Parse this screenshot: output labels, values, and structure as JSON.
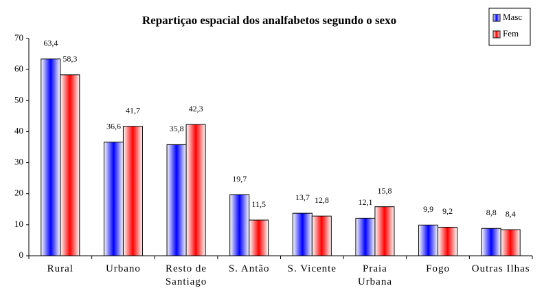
{
  "chart_data": {
    "type": "bar",
    "title": "Repartiçao espacial dos analfabetos segundo o sexo",
    "categories": [
      "Rural",
      "Urbano",
      "Resto de Santiago",
      "S. Antão",
      "S. Vicente",
      "Praia Urbana",
      "Fogo",
      "Outras Ilhas"
    ],
    "series": [
      {
        "name": "Masc",
        "color": "#0000ff",
        "values": [
          63.4,
          36.6,
          35.8,
          19.7,
          13.7,
          12.1,
          9.9,
          8.8
        ],
        "value_labels": [
          "63,4",
          "36,6",
          "35,8",
          "19,7",
          "13,7",
          "12,1",
          "9,9",
          "8,8"
        ]
      },
      {
        "name": "Fem",
        "color": "#ff0000",
        "values": [
          58.3,
          41.7,
          42.3,
          11.5,
          12.8,
          15.8,
          9.2,
          8.4
        ],
        "value_labels": [
          "58,3",
          "41,7",
          "42,3",
          "11,5",
          "12,8",
          "15,8",
          "9,2",
          "8,4"
        ]
      }
    ],
    "ylim": [
      0,
      70
    ],
    "yticks": [
      0,
      10,
      20,
      30,
      40,
      50,
      60,
      70
    ],
    "grid": false,
    "legend": "top-right"
  }
}
